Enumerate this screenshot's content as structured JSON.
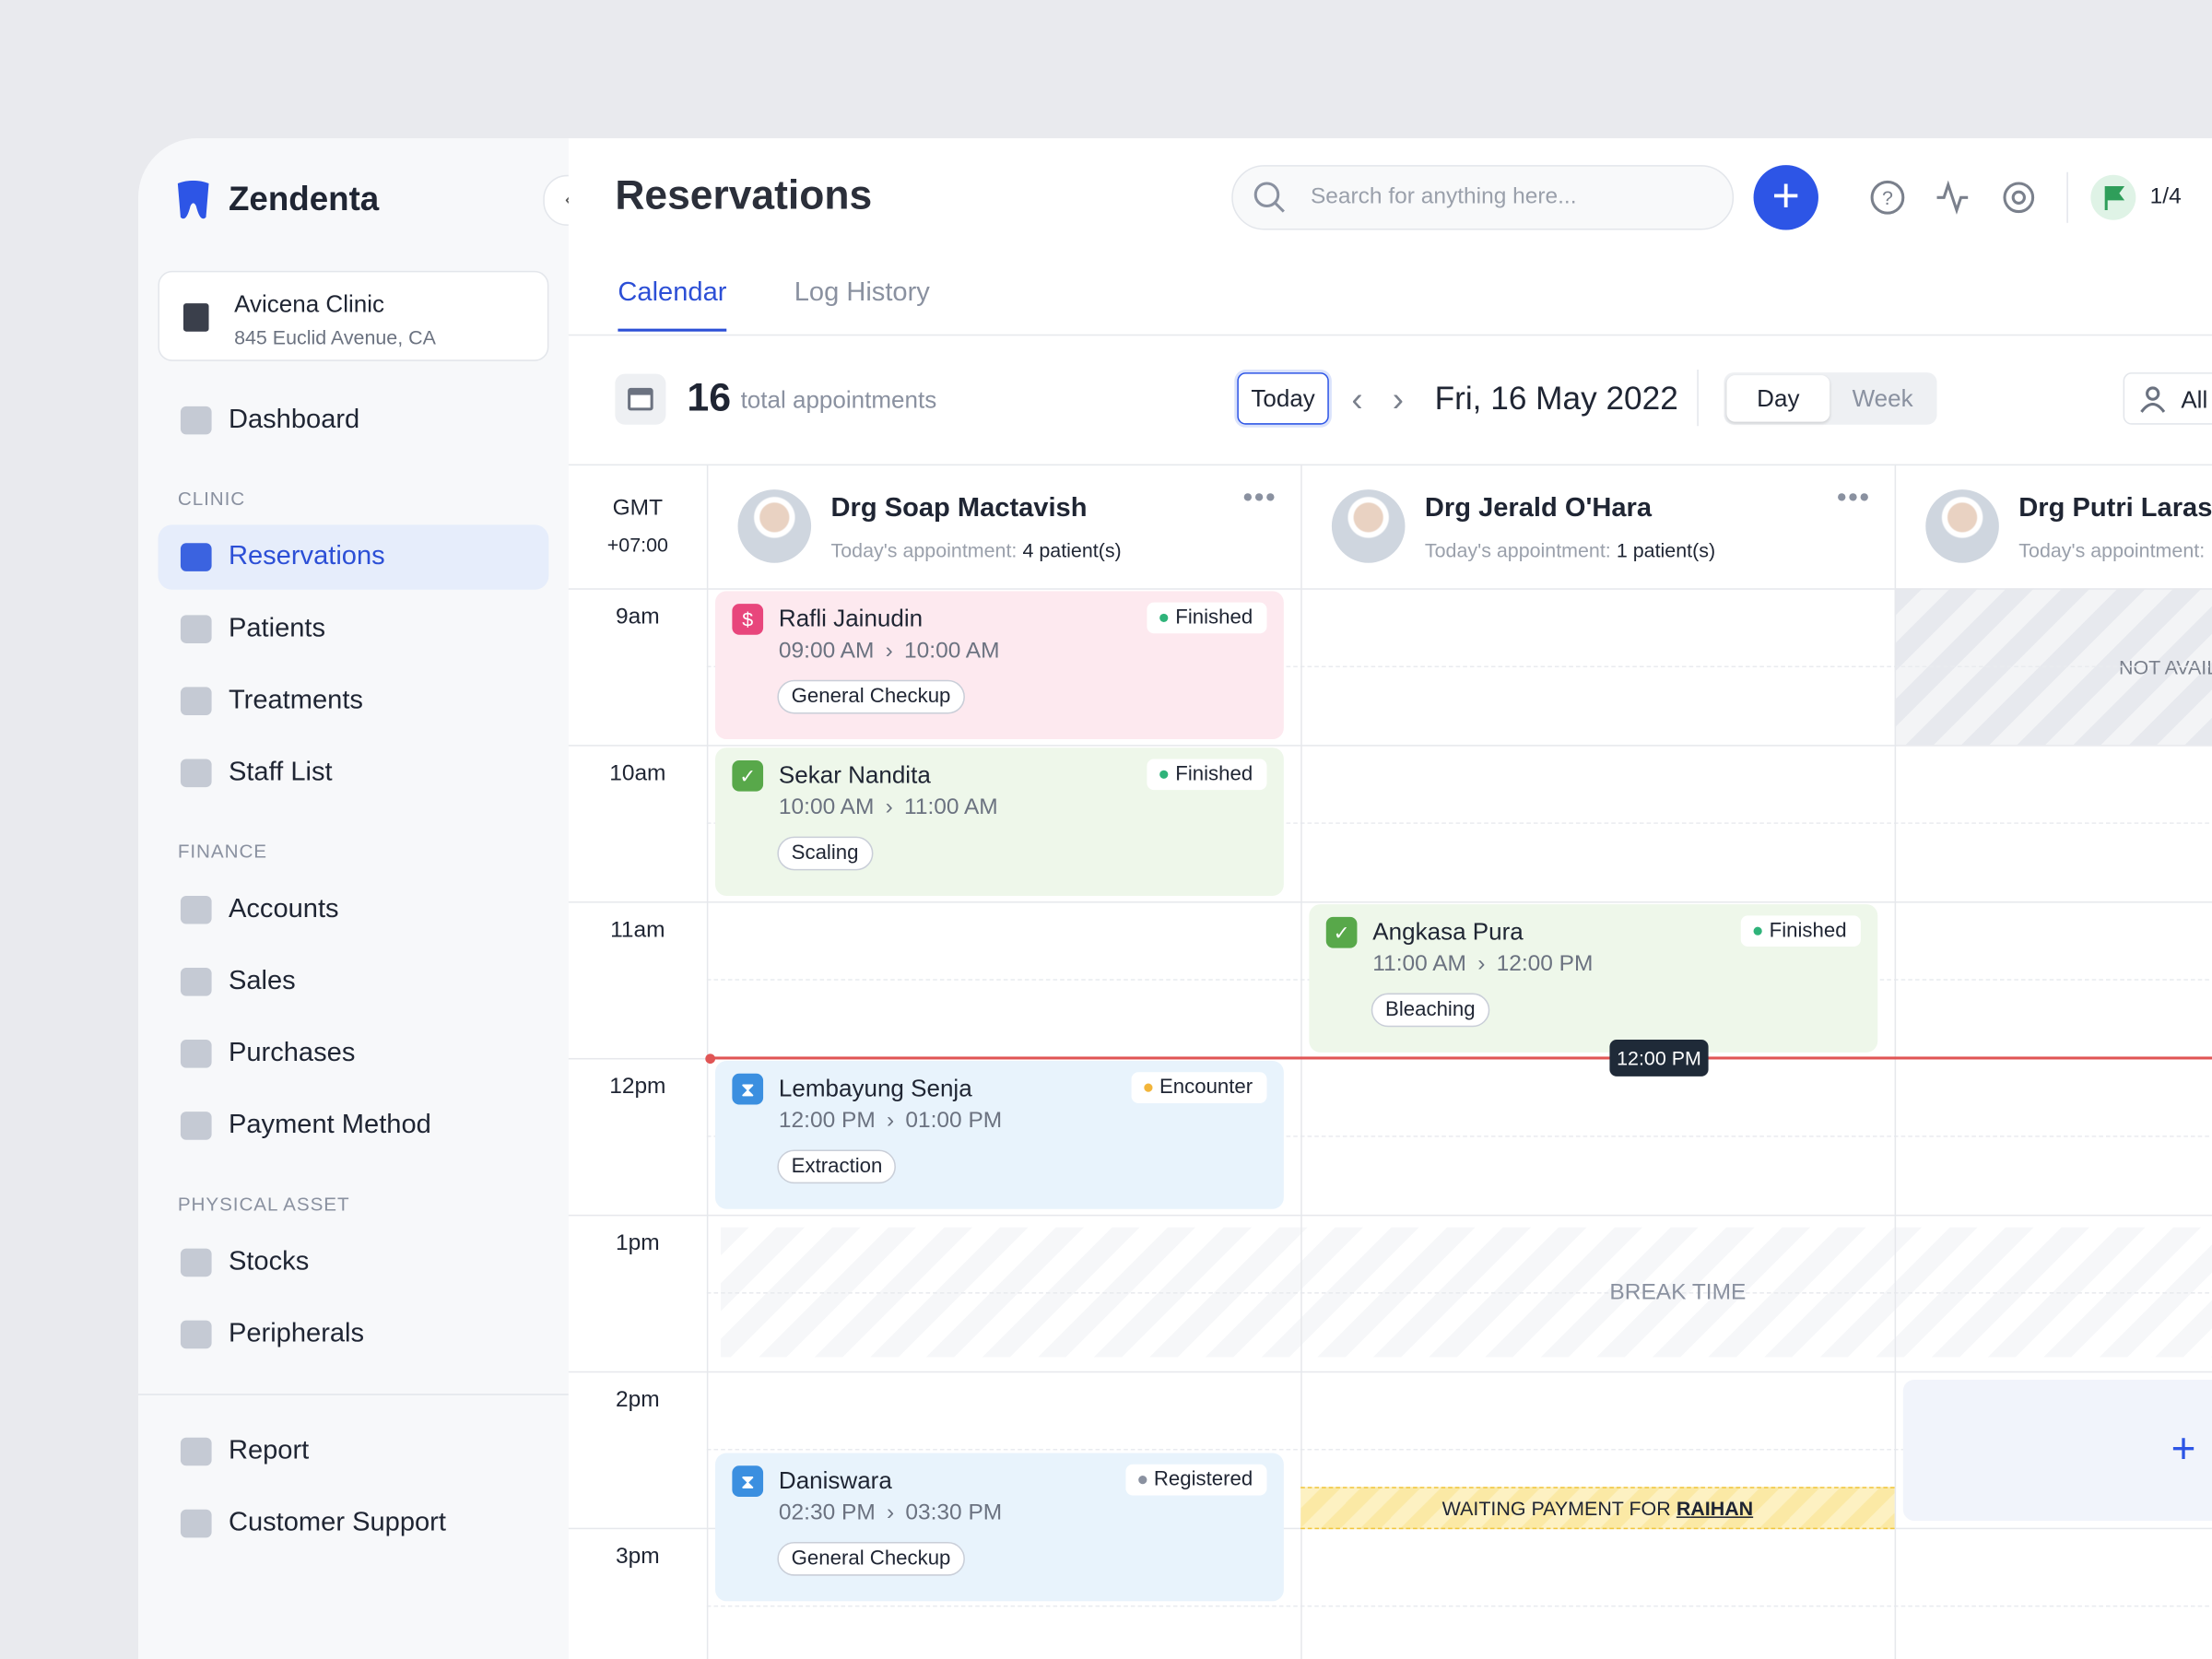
{
  "sidebar": {
    "brand": "Zendenta",
    "clinic": {
      "name": "Avicena Clinic",
      "address": "845 Euclid Avenue, CA"
    },
    "top_nav": [
      {
        "label": "Dashboard"
      }
    ],
    "sections": [
      {
        "heading": "CLINIC",
        "items": [
          {
            "label": "Reservations",
            "active": true
          },
          {
            "label": "Patients"
          },
          {
            "label": "Treatments"
          },
          {
            "label": "Staff List"
          }
        ]
      },
      {
        "heading": "FINANCE",
        "items": [
          {
            "label": "Accounts"
          },
          {
            "label": "Sales"
          },
          {
            "label": "Purchases"
          },
          {
            "label": "Payment Method"
          }
        ]
      },
      {
        "heading": "PHYSICAL ASSET",
        "items": [
          {
            "label": "Stocks"
          },
          {
            "label": "Peripherals"
          }
        ]
      }
    ],
    "bottom_nav": [
      {
        "label": "Report"
      },
      {
        "label": "Customer Support"
      }
    ]
  },
  "header": {
    "title": "Reservations",
    "search_placeholder": "Search for anything here...",
    "flag_count": "1/4"
  },
  "tabs": {
    "items": [
      "Calendar",
      "Log History"
    ],
    "active": 0
  },
  "toolbar": {
    "total_count": "16",
    "total_label": "total appointments",
    "today_button": "Today",
    "date": "Fri, 16 May 2022",
    "views": [
      "Day",
      "Week"
    ],
    "active_view": 0,
    "filter": "All"
  },
  "calendar": {
    "timezone": "GMT",
    "offset": "+07:00",
    "times": [
      "9am",
      "10am",
      "11am",
      "12pm",
      "1pm",
      "2pm",
      "3pm"
    ],
    "doctors": [
      {
        "name": "Drg Soap Mactavish",
        "appointment_label": "Today's appointment:",
        "patients": "4 patient(s)"
      },
      {
        "name": "Drg Jerald O'Hara",
        "appointment_label": "Today's appointment:",
        "patients": "1 patient(s)"
      },
      {
        "name": "Drg Putri Larasati",
        "appointment_label": "Today's appointment:"
      }
    ],
    "appointments": [
      {
        "doctor": 0,
        "name": "Rafli Jainudin",
        "status": "Finished",
        "start": "09:00 AM",
        "end": "10:00 AM",
        "service": "General Checkup",
        "kind": "payment"
      },
      {
        "doctor": 0,
        "name": "Sekar Nandita",
        "status": "Finished",
        "start": "10:00 AM",
        "end": "11:00 AM",
        "service": "Scaling",
        "kind": "done"
      },
      {
        "doctor": 1,
        "name": "Angkasa Pura",
        "status": "Finished",
        "start": "11:00 AM",
        "end": "12:00 PM",
        "service": "Bleaching",
        "kind": "done"
      },
      {
        "doctor": 0,
        "name": "Lembayung Senja",
        "status": "Encounter",
        "start": "12:00 PM",
        "end": "01:00 PM",
        "service": "Extraction",
        "kind": "waiting"
      },
      {
        "doctor": 0,
        "name": "Daniswara",
        "status": "Registered",
        "start": "02:30 PM",
        "end": "03:30 PM",
        "service": "General Checkup",
        "kind": "waiting"
      }
    ],
    "now": "12:00 PM",
    "break_label": "BREAK TIME",
    "unavailable_label": "NOT AVAILABLE",
    "waiting_payment": {
      "label": "WAITING PAYMENT FOR",
      "patient": "RAIHAN"
    }
  }
}
